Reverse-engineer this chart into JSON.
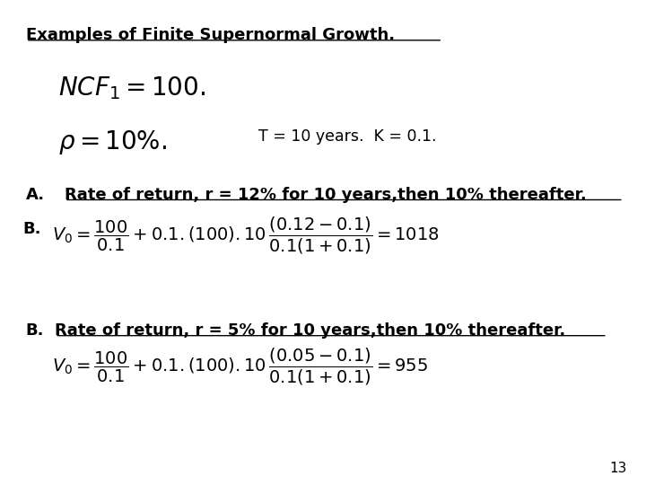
{
  "title": "Examples of Finite Supernormal Growth.",
  "background_color": "#ffffff",
  "text_color": "#000000",
  "page_number": "13",
  "line3_text": "T = 10 years.  K = 0.1.",
  "line_A_text": "Rate of return, r = 12% for 10 years,then 10% thereafter.",
  "line_B2_text": "Rate of return, r = 5% for 10 years,then 10% thereafter.",
  "figsize": [
    7.2,
    5.4
  ],
  "dpi": 100
}
